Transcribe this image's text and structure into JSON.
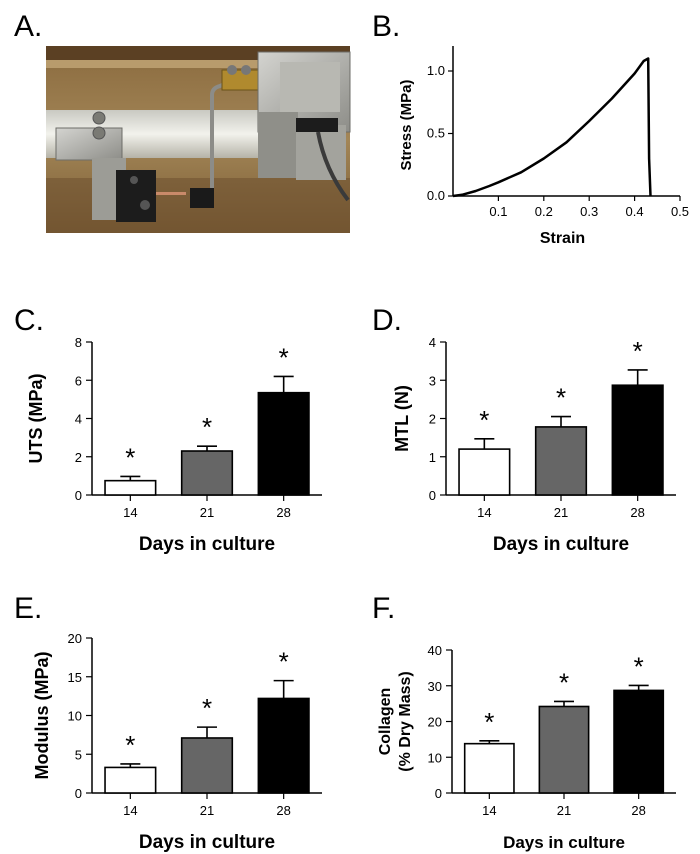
{
  "panel_labels": {
    "a": "A.",
    "b": "B.",
    "c": "C.",
    "d": "D.",
    "e": "E.",
    "f": "F."
  },
  "photo": {
    "description_icon": "tensile-test-grips-photo"
  },
  "chart_data": [
    {
      "id": "B",
      "type": "line",
      "xlabel": "Strain",
      "ylabel": "Stress (MPa)",
      "xlim": [
        0,
        0.5
      ],
      "ylim": [
        0,
        1.2
      ],
      "xticks": [
        "0.1",
        "0.2",
        "0.3",
        "0.4",
        "0.5"
      ],
      "xtick_values": [
        0.1,
        0.2,
        0.3,
        0.4,
        0.5
      ],
      "yticks": [
        "0.0",
        "0.5",
        "1.0"
      ],
      "ytick_values": [
        0,
        0.5,
        1.0
      ],
      "series": [
        {
          "name": "stress-strain",
          "x": [
            0.0,
            0.02,
            0.05,
            0.08,
            0.1,
            0.15,
            0.2,
            0.25,
            0.3,
            0.35,
            0.4,
            0.42,
            0.43,
            0.432,
            0.435
          ],
          "y": [
            0.0,
            0.01,
            0.04,
            0.08,
            0.11,
            0.19,
            0.3,
            0.43,
            0.6,
            0.78,
            0.98,
            1.08,
            1.1,
            0.3,
            0.0
          ]
        }
      ]
    },
    {
      "id": "C",
      "type": "bar",
      "categories": [
        "14",
        "21",
        "28"
      ],
      "values": [
        0.75,
        2.3,
        5.35
      ],
      "errors": [
        0.22,
        0.25,
        0.85
      ],
      "colors": [
        "#ffffff",
        "#666666",
        "#000000"
      ],
      "significance": [
        "*",
        "*",
        "*"
      ],
      "xlabel": "Days in culture",
      "ylabel": "UTS  (MPa)",
      "ylim": [
        0,
        8
      ],
      "yticks": [
        "0",
        "2",
        "4",
        "6",
        "8"
      ],
      "ytick_values": [
        0,
        2,
        4,
        6,
        8
      ]
    },
    {
      "id": "D",
      "type": "bar",
      "categories": [
        "14",
        "21",
        "28"
      ],
      "values": [
        1.2,
        1.78,
        2.87
      ],
      "errors": [
        0.27,
        0.27,
        0.4
      ],
      "colors": [
        "#ffffff",
        "#666666",
        "#000000"
      ],
      "significance": [
        "*",
        "*",
        "*"
      ],
      "xlabel": "Days in culture",
      "ylabel": "MTL  (N)",
      "ylim": [
        0,
        4
      ],
      "yticks": [
        "0",
        "1",
        "2",
        "3",
        "4"
      ],
      "ytick_values": [
        0,
        1,
        2,
        3,
        4
      ]
    },
    {
      "id": "E",
      "type": "bar",
      "categories": [
        "14",
        "21",
        "28"
      ],
      "values": [
        3.3,
        7.1,
        12.2
      ],
      "errors": [
        0.45,
        1.4,
        2.3
      ],
      "colors": [
        "#ffffff",
        "#666666",
        "#000000"
      ],
      "significance": [
        "*",
        "*",
        "*"
      ],
      "xlabel": "Days in culture",
      "ylabel": "Modulus  (MPa)",
      "ylim": [
        0,
        20
      ],
      "yticks": [
        "0",
        "5",
        "10",
        "15",
        "20"
      ],
      "ytick_values": [
        0,
        5,
        10,
        15,
        20
      ]
    },
    {
      "id": "F",
      "type": "bar",
      "categories": [
        "14",
        "21",
        "28"
      ],
      "values": [
        13.8,
        24.2,
        28.7
      ],
      "errors": [
        0.8,
        1.4,
        1.4
      ],
      "colors": [
        "#ffffff",
        "#666666",
        "#000000"
      ],
      "significance": [
        "*",
        "*",
        "*"
      ],
      "xlabel": "Days in culture",
      "ylabel": "Collagen",
      "ylabel2": "(% Dry Mass)",
      "ylim": [
        0,
        40
      ],
      "yticks": [
        "0",
        "10",
        "20",
        "30",
        "40"
      ],
      "ytick_values": [
        0,
        10,
        20,
        30,
        40
      ]
    }
  ]
}
